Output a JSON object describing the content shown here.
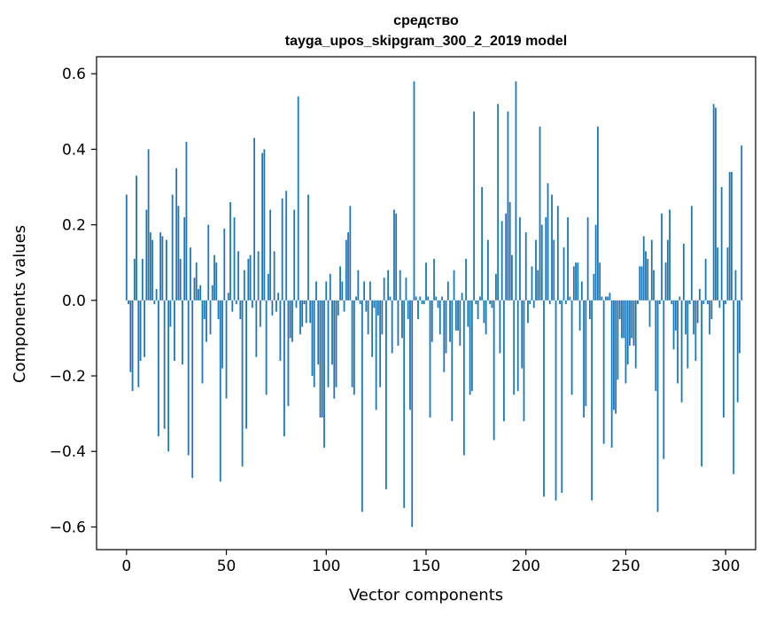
{
  "chart_data": {
    "type": "bar",
    "title_line1": "средство",
    "title_line2": "tayga_upos_skipgram_300_2_2019 model",
    "xlabel": "Vector components",
    "ylabel": "Components values",
    "xlim": [
      -15,
      315
    ],
    "ylim": [
      -0.66,
      0.645
    ],
    "xticks": [
      0,
      50,
      100,
      150,
      200,
      250,
      300
    ],
    "xtick_labels": [
      "0",
      "50",
      "100",
      "150",
      "200",
      "250",
      "300"
    ],
    "yticks": [
      -0.6,
      -0.4,
      -0.2,
      0.0,
      0.2,
      0.4,
      0.6
    ],
    "ytick_labels": [
      "−0.6",
      "−0.4",
      "−0.2",
      "0.0",
      "0.2",
      "0.4",
      "0.6"
    ],
    "grid": false,
    "bar_color": "#1f77b4",
    "values": [
      0.28,
      -0.01,
      -0.19,
      -0.24,
      0.11,
      0.33,
      -0.23,
      -0.16,
      0.11,
      -0.15,
      0.24,
      0.4,
      0.18,
      0.16,
      -0.01,
      0.03,
      -0.36,
      0.18,
      0.17,
      -0.34,
      0.16,
      -0.4,
      -0.07,
      0.28,
      -0.16,
      0.35,
      0.25,
      0.11,
      -0.17,
      0.22,
      0.42,
      -0.41,
      0.14,
      -0.47,
      0.06,
      0.1,
      0.03,
      0.04,
      -0.22,
      -0.05,
      -0.11,
      0.2,
      -0.09,
      0.04,
      0.12,
      0.1,
      -0.05,
      -0.48,
      -0.18,
      0.19,
      -0.26,
      0.02,
      0.26,
      -0.03,
      0.22,
      -0.01,
      0.13,
      -0.05,
      -0.44,
      0.08,
      -0.34,
      0.11,
      0.12,
      -0.02,
      0.43,
      -0.15,
      0.13,
      -0.07,
      0.39,
      0.4,
      -0.25,
      0.07,
      0.24,
      -0.04,
      0.13,
      -0.03,
      0.02,
      -0.16,
      0.27,
      -0.36,
      0.29,
      -0.28,
      -0.1,
      -0.11,
      0.24,
      -0.02,
      0.54,
      -0.09,
      -0.07,
      -0.01,
      -0.06,
      0.28,
      -0.06,
      -0.2,
      -0.23,
      0.05,
      -0.17,
      -0.31,
      -0.31,
      -0.39,
      0.05,
      -0.23,
      0.07,
      -0.17,
      -0.26,
      -0.23,
      -0.04,
      0.09,
      0.05,
      -0.03,
      0.16,
      0.18,
      0.25,
      -0.23,
      -0.25,
      0.01,
      0.08,
      -0.01,
      -0.56,
      0.05,
      -0.03,
      -0.09,
      0.05,
      -0.15,
      -0.02,
      -0.29,
      -0.04,
      -0.23,
      -0.09,
      0.06,
      -0.5,
      0.08,
      0.01,
      -0.14,
      0.24,
      0.23,
      -0.12,
      0.08,
      -0.1,
      -0.55,
      0.06,
      -0.05,
      -0.29,
      -0.6,
      0.58,
      0.01,
      -0.05,
      0.01,
      -0.01,
      -0.01,
      0.1,
      0.01,
      -0.31,
      -0.11,
      0.11,
      0.01,
      -0.02,
      -0.09,
      0.01,
      -0.19,
      -0.14,
      0.05,
      -0.11,
      -0.32,
      0.08,
      -0.08,
      -0.08,
      -0.12,
      0.02,
      -0.41,
      0.11,
      -0.07,
      -0.25,
      -0.24,
      0.5,
      -0.01,
      -0.05,
      0.01,
      0.3,
      -0.06,
      -0.09,
      0.16,
      -0.01,
      -0.02,
      -0.37,
      0.07,
      0.52,
      -0.14,
      0.21,
      -0.32,
      0.23,
      0.5,
      0.26,
      0.12,
      -0.25,
      0.58,
      -0.24,
      0.22,
      -0.18,
      -0.32,
      0.18,
      -0.06,
      -0.01,
      0.09,
      -0.02,
      0.16,
      0.08,
      0.46,
      0.2,
      -0.52,
      0.22,
      0.31,
      -0.01,
      0.28,
      0.16,
      -0.53,
      0.25,
      -0.01,
      -0.51,
      0.14,
      -0.01,
      0.22,
      0.01,
      -0.25,
      0.09,
      0.1,
      0.1,
      -0.08,
      0.05,
      -0.31,
      -0.28,
      0.22,
      -0.05,
      -0.53,
      0.07,
      0.2,
      0.46,
      0.1,
      0.01,
      -0.38,
      0.01,
      0.01,
      0.02,
      -0.39,
      -0.29,
      -0.3,
      -0.21,
      -0.05,
      -0.1,
      -0.1,
      -0.22,
      -0.17,
      -0.12,
      -0.1,
      -0.12,
      -0.18,
      -0.01,
      0.09,
      0.09,
      0.17,
      0.13,
      0.11,
      -0.07,
      0.16,
      0.08,
      -0.24,
      -0.56,
      -0.01,
      0.23,
      -0.42,
      0.1,
      0.16,
      0.24,
      -0.01,
      -0.13,
      -0.08,
      -0.22,
      0.01,
      -0.27,
      0.15,
      -0.09,
      -0.18,
      -0.01,
      0.25,
      -0.09,
      -0.16,
      -0.06,
      0.03,
      -0.44,
      -0.01,
      0.11,
      -0.01,
      -0.09,
      -0.05,
      0.52,
      0.51,
      0.14,
      -0.02,
      0.3,
      -0.31,
      -0.01,
      0.14,
      0.34,
      0.34,
      -0.46,
      0.08,
      -0.27,
      -0.14,
      0.41
    ]
  }
}
